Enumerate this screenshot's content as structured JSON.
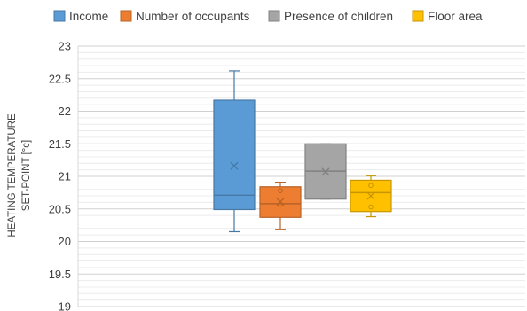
{
  "chart_data": {
    "type": "box",
    "title": "",
    "xlabel": "",
    "ylabel_lines": [
      "HEATING TEMPERATURE",
      "SET-POINT [°c]"
    ],
    "ylim": [
      19,
      23
    ],
    "yticks": [
      19,
      19.5,
      20,
      20.5,
      21,
      21.5,
      22,
      22.5,
      23
    ],
    "ytick_labels": [
      "19",
      "19.5",
      "20",
      "20.5",
      "21",
      "21.5",
      "22",
      "22.5",
      "23"
    ],
    "minor_grid_step": 0.1,
    "grid": true,
    "legend_position": "top",
    "series": [
      {
        "name": "Income",
        "color": "#5B9BD5",
        "min": 20.15,
        "q1": 20.49,
        "median": 20.71,
        "q3": 22.17,
        "max": 22.62,
        "mean": 21.16,
        "points": []
      },
      {
        "name": "Number of occupants",
        "color": "#ED7D31",
        "min": 20.18,
        "q1": 20.37,
        "median": 20.58,
        "q3": 20.84,
        "max": 20.91,
        "mean": 20.61,
        "points": [
          20.78,
          20.57
        ]
      },
      {
        "name": "Presence of children",
        "color": "#A5A5A5",
        "min": 20.65,
        "q1": 20.65,
        "median": 21.08,
        "q3": 21.5,
        "max": 21.5,
        "mean": 21.07,
        "points": []
      },
      {
        "name": "Floor area",
        "color": "#FFC000",
        "min": 20.38,
        "q1": 20.46,
        "median": 20.75,
        "q3": 20.94,
        "max": 21.01,
        "mean": 20.7,
        "points": [
          20.86,
          20.53
        ]
      }
    ]
  }
}
